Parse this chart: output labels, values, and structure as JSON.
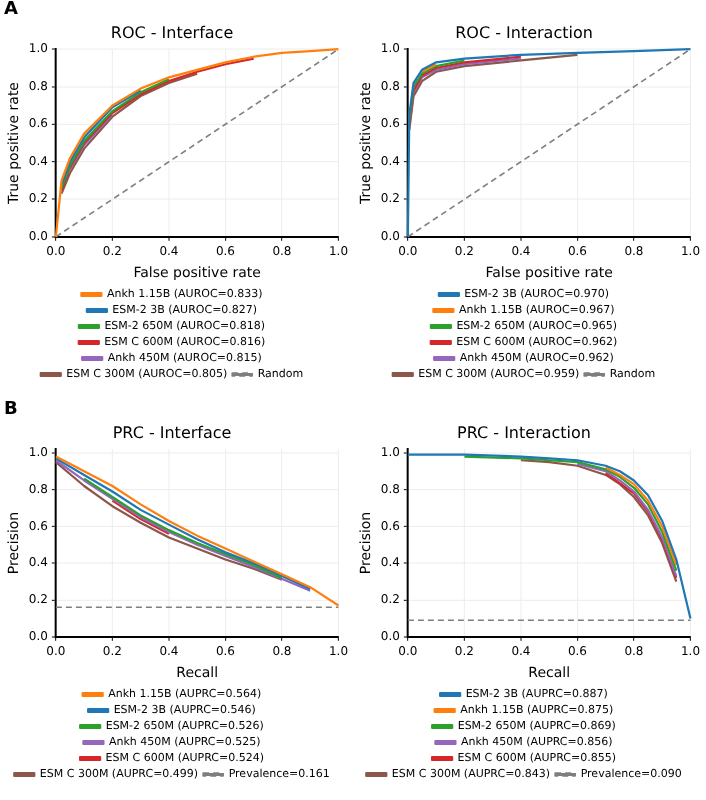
{
  "chart_data": [
    {
      "type": "line",
      "title": "ROC - Interface",
      "xlabel": "False positive rate",
      "ylabel": "True positive rate",
      "annotations": [
        "A"
      ],
      "x": [
        0,
        0.02,
        0.05,
        0.1,
        0.2,
        0.3,
        0.4,
        0.5,
        0.6,
        0.7,
        0.8,
        0.9,
        1
      ],
      "xlim": [
        0,
        1
      ],
      "ylim": [
        0,
        1
      ],
      "xticks": [
        {
          "value": 0,
          "label": "0.0"
        },
        {
          "value": 0.2,
          "label": "0.2"
        },
        {
          "value": 0.4,
          "label": "0.4"
        },
        {
          "value": 0.6,
          "label": "0.6"
        },
        {
          "value": 0.8,
          "label": "0.8"
        },
        {
          "value": 1,
          "label": "1.0"
        }
      ],
      "yticks": [
        {
          "value": 0,
          "label": "0.0"
        },
        {
          "value": 0.2,
          "label": "0.2"
        },
        {
          "value": 0.4,
          "label": "0.4"
        },
        {
          "value": 0.6,
          "label": "0.6"
        },
        {
          "value": 0.8,
          "label": "0.8"
        },
        {
          "value": 1,
          "label": "1.0"
        }
      ],
      "grid": true,
      "legend": "bottom",
      "marker": "none",
      "series": [
        {
          "name": "Ankh 1.15B (AUROC=0.833)",
          "color": "#ff7f0e",
          "values": [
            0,
            0.3,
            0.42,
            0.55,
            0.7,
            0.79,
            0.85,
            0.89,
            0.93,
            0.96,
            0.98,
            0.99,
            1
          ]
        },
        {
          "name": "ESM-2 3B (AUROC=0.827)",
          "color": "#1f77b4",
          "values": [
            null,
            0.28,
            0.4,
            0.53,
            0.69,
            0.78,
            null,
            null,
            null,
            null,
            null,
            null,
            null
          ]
        },
        {
          "name": "ESM-2 650M (AUROC=0.818)",
          "color": "#2ca02c",
          "values": [
            null,
            0.26,
            0.38,
            0.51,
            0.67,
            0.77,
            0.84,
            null,
            null,
            null,
            null,
            null,
            null
          ]
        },
        {
          "name": "ESM C 600M (AUROC=0.816)",
          "color": "#d62728",
          "values": [
            null,
            0.25,
            0.37,
            0.5,
            0.66,
            0.76,
            0.83,
            0.88,
            0.92,
            0.95,
            null,
            null,
            null
          ]
        },
        {
          "name": "Ankh 450M (AUROC=0.815)",
          "color": "#9467bd",
          "values": [
            null,
            null,
            0.36,
            0.49,
            0.65,
            null,
            null,
            null,
            null,
            null,
            null,
            null,
            null
          ]
        },
        {
          "name": "ESM C 300M (AUROC=0.805)",
          "color": "#8c564b",
          "values": [
            null,
            0.23,
            0.34,
            0.47,
            0.64,
            0.75,
            0.82,
            0.87,
            null,
            null,
            null,
            null,
            null
          ]
        },
        {
          "name": "Random",
          "color": "#7f7f7f",
          "line_style": "dashed",
          "values": [
            0,
            0.02,
            0.05,
            0.1,
            0.2,
            0.3,
            0.4,
            0.5,
            0.6,
            0.7,
            0.8,
            0.9,
            1
          ]
        }
      ]
    },
    {
      "type": "line",
      "title": "ROC - Interaction",
      "xlabel": "False positive rate",
      "ylabel": "True positive rate",
      "x": [
        0,
        0.005,
        0.02,
        0.05,
        0.1,
        0.2,
        0.4,
        0.6,
        0.8,
        1
      ],
      "xlim": [
        0,
        1
      ],
      "ylim": [
        0,
        1
      ],
      "xticks": [
        {
          "value": 0,
          "label": "0.0"
        },
        {
          "value": 0.2,
          "label": "0.2"
        },
        {
          "value": 0.4,
          "label": "0.4"
        },
        {
          "value": 0.6,
          "label": "0.6"
        },
        {
          "value": 0.8,
          "label": "0.8"
        },
        {
          "value": 1,
          "label": "1.0"
        }
      ],
      "yticks": [
        {
          "value": 0,
          "label": "0.0"
        },
        {
          "value": 0.2,
          "label": "0.2"
        },
        {
          "value": 0.4,
          "label": "0.4"
        },
        {
          "value": 0.6,
          "label": "0.6"
        },
        {
          "value": 0.8,
          "label": "0.8"
        },
        {
          "value": 1,
          "label": "1.0"
        }
      ],
      "grid": true,
      "legend": "bottom",
      "marker": "none",
      "series": [
        {
          "name": "ESM-2 3B (AUROC=0.970)",
          "color": "#1f77b4",
          "values": [
            0,
            0.65,
            0.82,
            0.89,
            0.93,
            0.95,
            0.97,
            0.98,
            0.99,
            1
          ]
        },
        {
          "name": "Ankh 1.15B (AUROC=0.967)",
          "color": "#ff7f0e",
          "values": [
            null,
            null,
            null,
            0.88,
            0.92,
            null,
            null,
            null,
            null,
            null
          ]
        },
        {
          "name": "ESM-2 650M (AUROC=0.965)",
          "color": "#2ca02c",
          "values": [
            null,
            0.62,
            0.8,
            0.87,
            0.91,
            0.94,
            null,
            null,
            null,
            null
          ]
        },
        {
          "name": "ESM C 600M (AUROC=0.962)",
          "color": "#d62728",
          "values": [
            null,
            0.6,
            0.78,
            0.86,
            0.9,
            0.93,
            0.96,
            null,
            null,
            null
          ]
        },
        {
          "name": "Ankh 450M (AUROC=0.962)",
          "color": "#9467bd",
          "values": [
            null,
            0.59,
            0.77,
            0.85,
            0.89,
            0.92,
            0.95,
            null,
            null,
            null
          ]
        },
        {
          "name": "ESM C 300M (AUROC=0.959)",
          "color": "#8c564b",
          "values": [
            null,
            0.57,
            0.75,
            0.83,
            0.88,
            0.91,
            0.94,
            0.97,
            null,
            null
          ]
        },
        {
          "name": "Random",
          "color": "#7f7f7f",
          "line_style": "dashed",
          "values": [
            0,
            0.005,
            0.02,
            0.05,
            0.1,
            0.2,
            0.4,
            0.6,
            0.8,
            1
          ]
        }
      ]
    },
    {
      "type": "line",
      "title": "PRC - Interface",
      "xlabel": "Recall",
      "ylabel": "Precision",
      "annotations": [
        "B"
      ],
      "x": [
        0,
        0.1,
        0.2,
        0.3,
        0.4,
        0.5,
        0.6,
        0.7,
        0.8,
        0.9,
        1
      ],
      "xlim": [
        0,
        1
      ],
      "ylim": [
        0,
        1.02
      ],
      "xticks": [
        {
          "value": 0,
          "label": "0.0"
        },
        {
          "value": 0.2,
          "label": "0.2"
        },
        {
          "value": 0.4,
          "label": "0.4"
        },
        {
          "value": 0.6,
          "label": "0.6"
        },
        {
          "value": 0.8,
          "label": "0.8"
        },
        {
          "value": 1,
          "label": "1.0"
        }
      ],
      "yticks": [
        {
          "value": 0,
          "label": "0.0"
        },
        {
          "value": 0.2,
          "label": "0.2"
        },
        {
          "value": 0.4,
          "label": "0.4"
        },
        {
          "value": 0.6,
          "label": "0.6"
        },
        {
          "value": 0.8,
          "label": "0.8"
        },
        {
          "value": 1,
          "label": "1.0"
        }
      ],
      "grid": true,
      "legend": "bottom",
      "marker": "none",
      "series": [
        {
          "name": "Ankh 1.15B (AUPRC=0.564)",
          "color": "#ff7f0e",
          "values": [
            0.98,
            0.9,
            0.82,
            0.72,
            0.63,
            0.55,
            0.48,
            0.41,
            0.34,
            0.27,
            0.17
          ]
        },
        {
          "name": "ESM-2 3B (AUPRC=0.546)",
          "color": "#1f77b4",
          "values": [
            0.97,
            0.88,
            0.79,
            0.69,
            0.61,
            0.53,
            0.46,
            0.4,
            0.33,
            0.26,
            null
          ]
        },
        {
          "name": "ESM-2 650M (AUPRC=0.526)",
          "color": "#2ca02c",
          "values": [
            null,
            0.86,
            0.76,
            0.66,
            0.58,
            0.51,
            0.45,
            0.39,
            0.32,
            null,
            null
          ]
        },
        {
          "name": "Ankh 450M (AUPRC=0.525)",
          "color": "#9467bd",
          "values": [
            0.96,
            0.85,
            0.75,
            0.65,
            0.57,
            0.5,
            0.44,
            0.38,
            null,
            0.25,
            null
          ]
        },
        {
          "name": "ESM C 600M (AUPRC=0.524)",
          "color": "#d62728",
          "values": [
            null,
            null,
            0.74,
            0.64,
            0.56,
            null,
            null,
            null,
            null,
            null,
            null
          ]
        },
        {
          "name": "ESM C 300M (AUPRC=0.499)",
          "color": "#8c564b",
          "values": [
            0.95,
            0.82,
            0.71,
            0.62,
            0.54,
            0.48,
            0.42,
            0.37,
            0.31,
            null,
            null
          ]
        },
        {
          "name": "Prevalence=0.161",
          "color": "#7f7f7f",
          "line_style": "dashed",
          "values": [
            0.161,
            0.161,
            0.161,
            0.161,
            0.161,
            0.161,
            0.161,
            0.161,
            0.161,
            0.161,
            0.161
          ]
        }
      ]
    },
    {
      "type": "line",
      "title": "PRC - Interaction",
      "xlabel": "Recall",
      "ylabel": "Precision",
      "x": [
        0,
        0.2,
        0.4,
        0.5,
        0.6,
        0.7,
        0.75,
        0.8,
        0.85,
        0.9,
        0.95,
        1
      ],
      "xlim": [
        0,
        1
      ],
      "ylim": [
        0,
        1.02
      ],
      "xticks": [
        {
          "value": 0,
          "label": "0.0"
        },
        {
          "value": 0.2,
          "label": "0.2"
        },
        {
          "value": 0.4,
          "label": "0.4"
        },
        {
          "value": 0.6,
          "label": "0.6"
        },
        {
          "value": 0.8,
          "label": "0.8"
        },
        {
          "value": 1,
          "label": "1.0"
        }
      ],
      "yticks": [
        {
          "value": 0,
          "label": "0.0"
        },
        {
          "value": 0.2,
          "label": "0.2"
        },
        {
          "value": 0.4,
          "label": "0.4"
        },
        {
          "value": 0.6,
          "label": "0.6"
        },
        {
          "value": 0.8,
          "label": "0.8"
        },
        {
          "value": 1,
          "label": "1.0"
        }
      ],
      "grid": true,
      "legend": "bottom",
      "marker": "none",
      "series": [
        {
          "name": "ESM-2 3B (AUPRC=0.887)",
          "color": "#1f77b4",
          "values": [
            0.99,
            0.99,
            0.98,
            0.97,
            0.96,
            0.93,
            0.9,
            0.85,
            0.77,
            0.63,
            0.42,
            0.1
          ]
        },
        {
          "name": "Ankh 1.15B (AUPRC=0.875)",
          "color": "#ff7f0e",
          "values": [
            null,
            null,
            null,
            null,
            null,
            0.92,
            0.88,
            0.83,
            0.74,
            0.6,
            0.39,
            null
          ]
        },
        {
          "name": "ESM-2 650M (AUPRC=0.869)",
          "color": "#2ca02c",
          "values": [
            null,
            0.98,
            0.97,
            0.96,
            0.95,
            0.91,
            0.87,
            0.81,
            0.72,
            0.57,
            0.36,
            null
          ]
        },
        {
          "name": "Ankh 450M (AUPRC=0.856)",
          "color": "#9467bd",
          "values": [
            null,
            null,
            null,
            null,
            0.94,
            0.9,
            0.85,
            0.79,
            0.69,
            0.54,
            0.33,
            null
          ]
        },
        {
          "name": "ESM C 600M (AUPRC=0.855)",
          "color": "#d62728",
          "values": [
            null,
            null,
            null,
            null,
            null,
            0.89,
            null,
            0.78,
            0.68,
            0.53,
            0.32,
            null
          ]
        },
        {
          "name": "ESM C 300M (AUPRC=0.843)",
          "color": "#8c564b",
          "values": [
            null,
            null,
            0.96,
            0.95,
            0.93,
            0.88,
            0.83,
            0.76,
            0.66,
            0.51,
            0.3,
            null
          ]
        },
        {
          "name": "Prevalence=0.090",
          "color": "#7f7f7f",
          "line_style": "dashed",
          "values": [
            0.09,
            0.09,
            0.09,
            0.09,
            0.09,
            0.09,
            0.09,
            0.09,
            0.09,
            0.09,
            0.09,
            0.09
          ]
        }
      ]
    }
  ]
}
